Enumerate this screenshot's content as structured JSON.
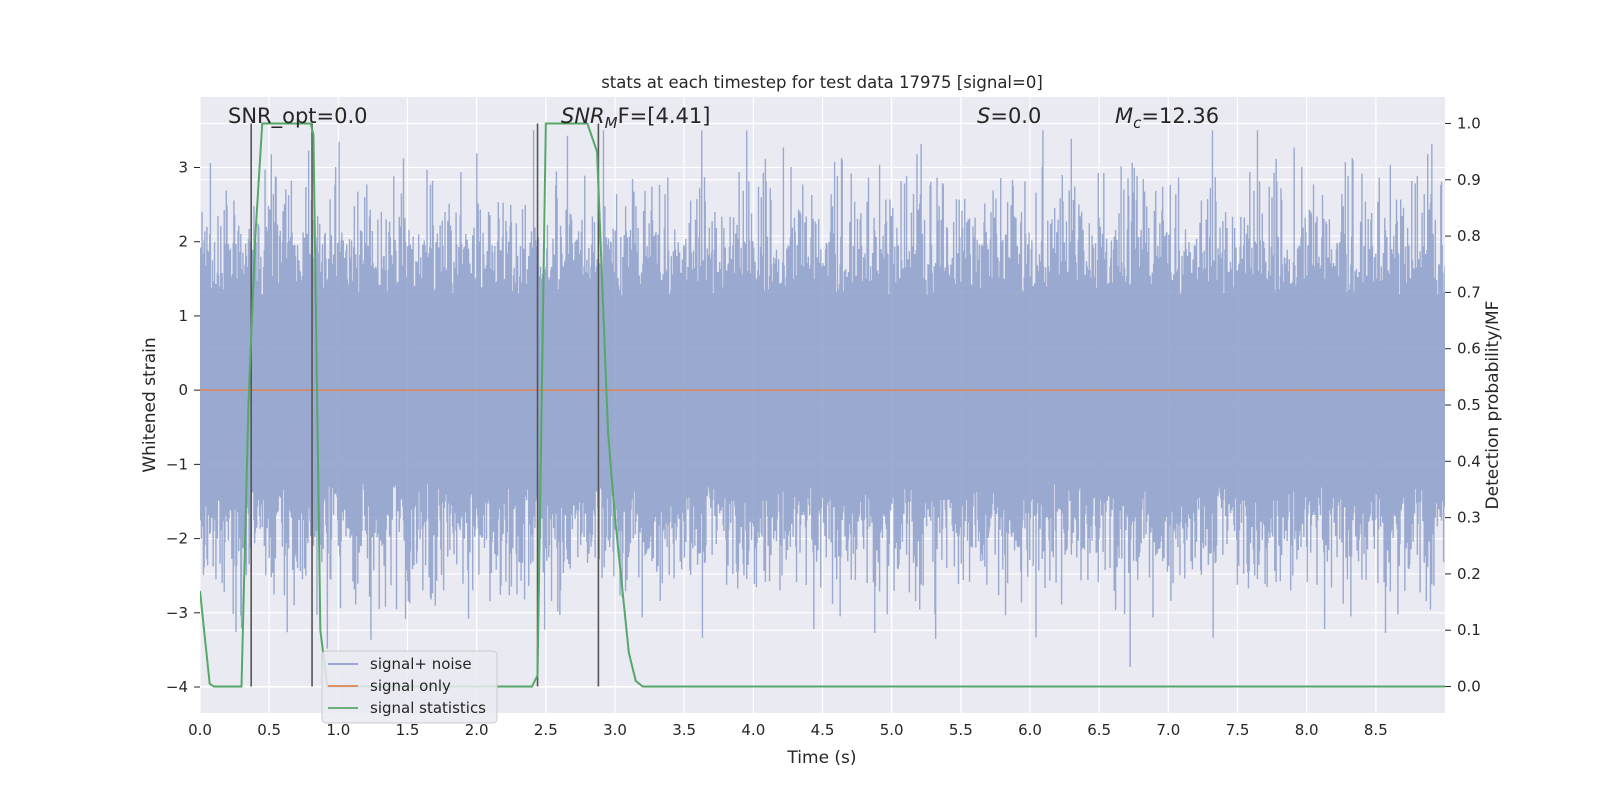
{
  "chart_data": {
    "type": "line",
    "title": "stats at each timestep for test data 17975 [signal=0]",
    "xlabel": "Time (s)",
    "ylabel": "Whitened strain",
    "y2label": "Detection probability/MF",
    "xlim": [
      0.0,
      9.0
    ],
    "ylim": [
      -4.35,
      3.95
    ],
    "y2lim": [
      -0.047,
      1.047
    ],
    "xticks": [
      "0.0",
      "0.5",
      "1.0",
      "1.5",
      "2.0",
      "2.5",
      "3.0",
      "3.5",
      "4.0",
      "4.5",
      "5.0",
      "5.5",
      "6.0",
      "6.5",
      "7.0",
      "7.5",
      "8.0",
      "8.5"
    ],
    "yticks": [
      "3",
      "2",
      "1",
      "0",
      "−1",
      "−2",
      "−3",
      "−4"
    ],
    "y2ticks": [
      "1.0",
      "0.9",
      "0.8",
      "0.7",
      "0.6",
      "0.5",
      "0.4",
      "0.3",
      "0.2",
      "0.1",
      "0.0"
    ],
    "grid": true,
    "legend_position": "lower-left",
    "annotations": {
      "snr_opt": "SNR_opt=0.0",
      "snr_mf_main": "SNR",
      "snr_mf_sub": "M",
      "snr_mf_rest": "F=[4.41]",
      "s_main": "S",
      "s_rest": "=0.0",
      "mc_main": "M",
      "mc_sub": "c",
      "mc_rest": "=12.36"
    },
    "series": [
      {
        "name": "signal+ noise",
        "color": "#8c9ec9",
        "axis": "left",
        "generated_noise": true,
        "envelope_max": 3.5,
        "envelope_min": -4.0,
        "sample_count": 1800
      },
      {
        "name": "signal only",
        "color": "#dd8452",
        "axis": "left",
        "x": [
          0.0,
          9.0
        ],
        "y": [
          0.0,
          0.0
        ]
      },
      {
        "name": "signal statistics",
        "color": "#55a868",
        "axis": "right",
        "x": [
          0.0,
          0.07,
          0.1,
          0.15,
          0.2,
          0.3,
          0.35,
          0.4,
          0.45,
          0.8,
          0.82,
          0.87,
          0.92,
          1.0,
          2.0,
          2.35,
          2.4,
          2.44,
          2.5,
          2.8,
          2.87,
          2.95,
          3.0,
          3.1,
          3.15,
          3.2,
          4.0,
          5.0,
          6.0,
          7.0,
          8.0,
          9.0
        ],
        "y": [
          0.17,
          0.005,
          0.0,
          0.0,
          0.0,
          0.0,
          0.5,
          0.8,
          1.0,
          1.0,
          0.98,
          0.1,
          0.0,
          0.0,
          0.0,
          0.0,
          0.0,
          0.02,
          1.0,
          1.0,
          0.95,
          0.45,
          0.3,
          0.06,
          0.01,
          0.0,
          0.0,
          0.0,
          0.0,
          0.0,
          0.0,
          0.0
        ]
      }
    ],
    "vertical_markers": {
      "color": "#555555",
      "x": [
        0.37,
        0.81,
        2.44,
        2.88
      ],
      "y2_range": [
        0.0,
        1.0
      ]
    }
  }
}
